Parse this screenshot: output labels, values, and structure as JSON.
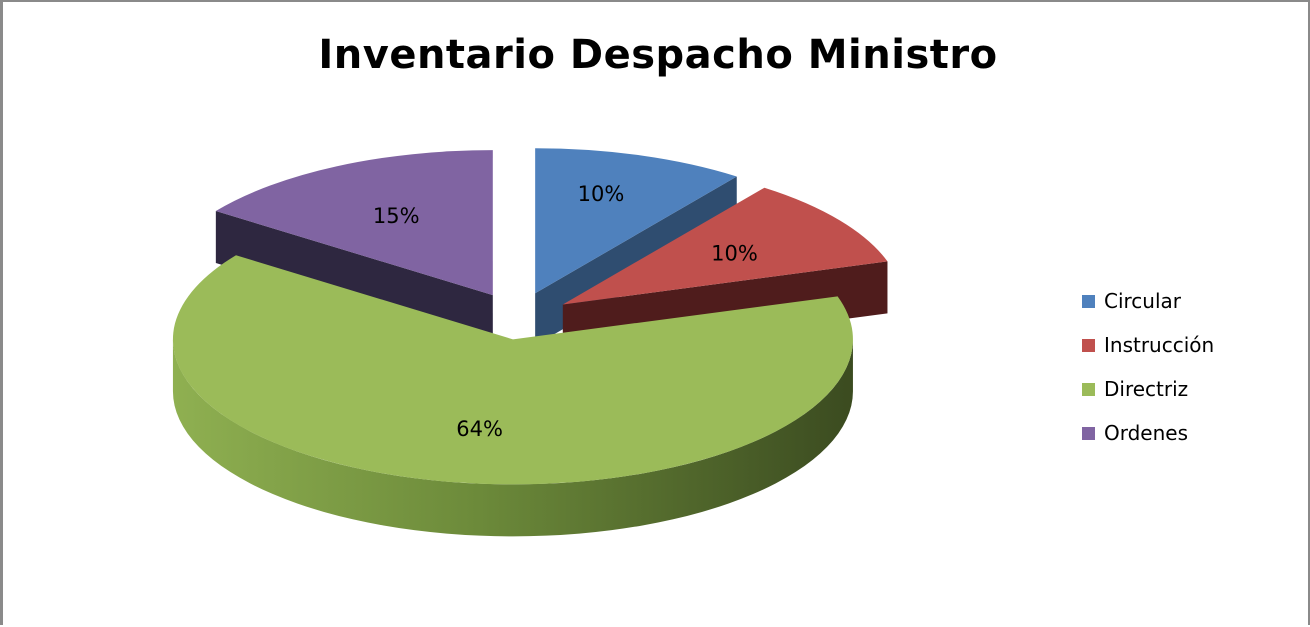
{
  "chart_data": {
    "type": "pie",
    "title": "Inventario Despacho Ministro",
    "categories": [
      "Circular",
      "Instrucción",
      "Directriz",
      "Ordenes"
    ],
    "values": [
      10,
      10,
      64,
      15
    ],
    "labels": [
      "10%",
      "10%",
      "64%",
      "15%"
    ],
    "colors": [
      "#4f81bd",
      "#c0504d",
      "#9bbb59",
      "#8064a2"
    ],
    "exploded": true,
    "three_d": true,
    "legend_position": "right"
  }
}
